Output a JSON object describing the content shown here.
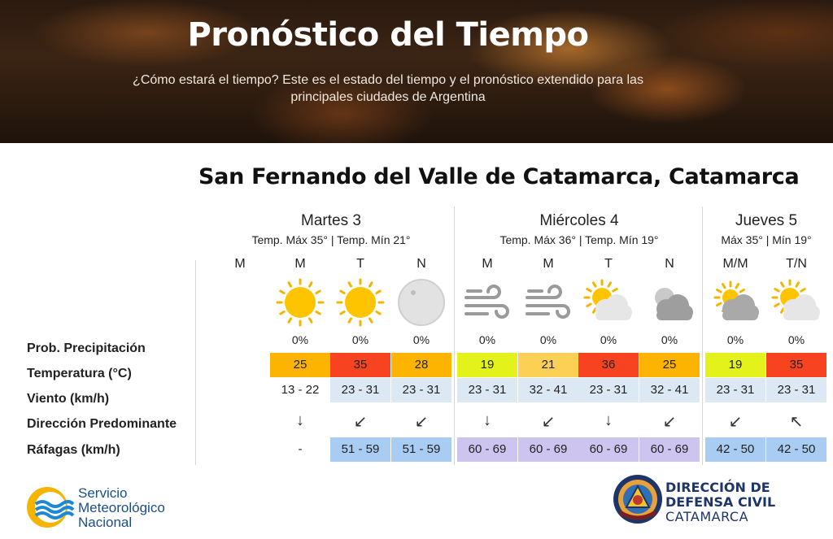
{
  "header": {
    "title": "Pronóstico del Tiempo",
    "subtitle_line1": "¿Cómo estará el tiempo? Este es el estado del tiempo y el pronóstico extendido para las",
    "subtitle_line2": "principales ciudades de Argentina"
  },
  "city": "San Fernando del Valle de Catamarca, Catamarca",
  "row_labels": {
    "precip": "Prob. Precipitación",
    "temp": "Temperatura (°C)",
    "wind": "Viento (km/h)",
    "direction": "Dirección Predominante",
    "gusts": "Ráfagas (km/h)"
  },
  "days": [
    {
      "name": "Martes 3",
      "temps": "Temp. Máx 35° | Temp. Mín 21°"
    },
    {
      "name": "Miércoles 4",
      "temps": "Temp. Máx 36° | Temp. Mín 19°"
    },
    {
      "name": "Jueves 5",
      "temps": "Máx 35° | Mín 19°"
    }
  ],
  "periods": [
    {
      "label": "M",
      "icon": "none",
      "precip": "",
      "temp": "",
      "temp_color": "",
      "wind": "",
      "wind_bg": "",
      "dir": "",
      "gust": "",
      "gust_bg": ""
    },
    {
      "label": "M",
      "icon": "sun-icon",
      "precip": "0%",
      "temp": "25",
      "temp_color": "#fcb400",
      "wind": "13 - 22",
      "wind_bg": "#ffffff",
      "dir": "down",
      "gust": "-",
      "gust_bg": "#ffffff"
    },
    {
      "label": "T",
      "icon": "sun-icon",
      "precip": "0%",
      "temp": "35",
      "temp_color": "#f7431f",
      "wind": "23 - 31",
      "wind_bg": "#dde8f5",
      "dir": "down-left",
      "gust": "51 - 59",
      "gust_bg": "#a9cdf2"
    },
    {
      "label": "N",
      "icon": "moon-icon",
      "precip": "0%",
      "temp": "28",
      "temp_color": "#fcb400",
      "wind": "23 - 31",
      "wind_bg": "#dde8f5",
      "dir": "down-left",
      "gust": "51 - 59",
      "gust_bg": "#a9cdf2"
    },
    {
      "label": "M",
      "icon": "wind-icon",
      "precip": "0%",
      "temp": "19",
      "temp_color": "#e4f21c",
      "wind": "23 - 31",
      "wind_bg": "#dde8f5",
      "dir": "down",
      "gust": "60 - 69",
      "gust_bg": "#cdc5f0"
    },
    {
      "label": "M",
      "icon": "wind-icon",
      "precip": "0%",
      "temp": "21",
      "temp_color": "#fcd055",
      "wind": "32 - 41",
      "wind_bg": "#dde8f5",
      "dir": "down-left",
      "gust": "60 - 69",
      "gust_bg": "#cdc5f0"
    },
    {
      "label": "T",
      "icon": "sun-cloud-icon",
      "precip": "0%",
      "temp": "36",
      "temp_color": "#f7431f",
      "wind": "23 - 31",
      "wind_bg": "#dde8f5",
      "dir": "down",
      "gust": "60 - 69",
      "gust_bg": "#cdc5f0"
    },
    {
      "label": "N",
      "icon": "moon-cloud-icon",
      "precip": "0%",
      "temp": "25",
      "temp_color": "#fcb400",
      "wind": "32 - 41",
      "wind_bg": "#dde8f5",
      "dir": "down-left",
      "gust": "60 - 69",
      "gust_bg": "#cdc5f0"
    },
    {
      "label": "M/M",
      "icon": "sun-cloud-grey-icon",
      "precip": "0%",
      "temp": "19",
      "temp_color": "#e4f21c",
      "wind": "23 - 31",
      "wind_bg": "#dde8f5",
      "dir": "down-left",
      "gust": "42 - 50",
      "gust_bg": "#a9cdf2"
    },
    {
      "label": "T/N",
      "icon": "sun-cloud-icon",
      "precip": "0%",
      "temp": "35",
      "temp_color": "#f7431f",
      "wind": "23 - 31",
      "wind_bg": "#dde8f5",
      "dir": "up-left",
      "gust": "42 - 50",
      "gust_bg": "#a9cdf2"
    }
  ],
  "footer": {
    "smn_line1": "Servicio",
    "smn_line2": "Meteorológico",
    "smn_line3": "Nacional",
    "dc_line1": "DIRECCIÓN DE",
    "dc_line2": "DEFENSA CIVIL",
    "dc_line3": "CATAMARCA"
  }
}
